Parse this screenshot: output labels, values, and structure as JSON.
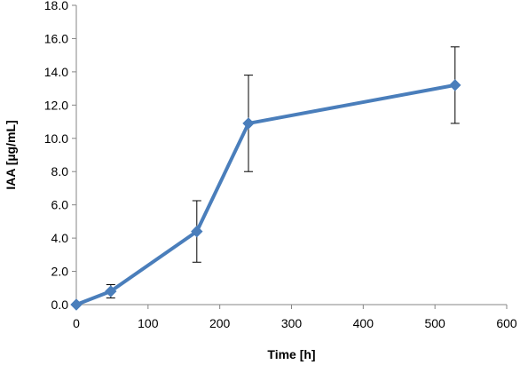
{
  "chart_data": {
    "type": "line",
    "title": "",
    "xlabel": "Time [h]",
    "ylabel": "IAA [µg/mL]",
    "xlim": [
      0,
      600
    ],
    "ylim": [
      0,
      18
    ],
    "xticks": [
      0,
      100,
      200,
      300,
      400,
      500,
      600
    ],
    "yticks": [
      0,
      2,
      4,
      6,
      8,
      10,
      12,
      14,
      16,
      18
    ],
    "x_tick_labels": [
      "0",
      "100",
      "200",
      "300",
      "400",
      "500",
      "600"
    ],
    "y_tick_labels": [
      "0.0",
      "2.0",
      "4.0",
      "6.0",
      "8.0",
      "10.0",
      "12.0",
      "14.0",
      "16.0",
      "18.0"
    ],
    "grid": false,
    "legend": "none",
    "series": [
      {
        "x": [
          0,
          48,
          168,
          240,
          528
        ],
        "y": [
          0.0,
          0.8,
          4.4,
          10.9,
          13.2
        ],
        "error": [
          0.0,
          0.4,
          1.85,
          2.9,
          2.3
        ],
        "color": "#4a7ebb",
        "marker": "diamond"
      }
    ]
  }
}
